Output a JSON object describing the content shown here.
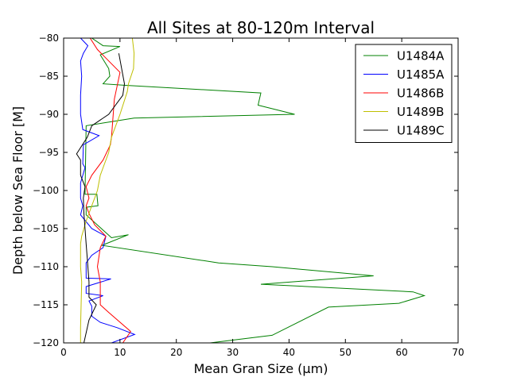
{
  "chart_data": {
    "type": "line",
    "title": "All Sites at 80-120m Interval",
    "xlabel": "Mean Gran Size (μm)",
    "ylabel": "Depth below Sea Floor [M]",
    "xlim": [
      0,
      70
    ],
    "ylim": [
      -120,
      -80
    ],
    "xticks": [
      0,
      10,
      20,
      30,
      40,
      50,
      60,
      70
    ],
    "yticks": [
      -80,
      -85,
      -90,
      -95,
      -100,
      -105,
      -110,
      -115,
      -120
    ],
    "grid": false,
    "legend_position": "top-right",
    "series": [
      {
        "name": "U1484A",
        "color": "#008000",
        "points": [
          [
            5.0,
            -80
          ],
          [
            7.0,
            -81
          ],
          [
            10.0,
            -81.1
          ],
          [
            6.5,
            -82.2
          ],
          [
            8.0,
            -84
          ],
          [
            8.2,
            -85
          ],
          [
            7.0,
            -86
          ],
          [
            11.0,
            -86.2
          ],
          [
            35.0,
            -87.2
          ],
          [
            34.5,
            -88.8
          ],
          [
            41.0,
            -90
          ],
          [
            12.5,
            -90.5
          ],
          [
            4.0,
            -91.5
          ],
          [
            3.8,
            -100.5
          ],
          [
            5.9,
            -100.5
          ],
          [
            6.1,
            -102
          ],
          [
            4.0,
            -102.2
          ],
          [
            4.0,
            -103.2
          ],
          [
            8.5,
            -106.2
          ],
          [
            11.5,
            -105.8
          ],
          [
            6.8,
            -107.2
          ],
          [
            27.5,
            -109.5
          ],
          [
            37.0,
            -110
          ],
          [
            55.0,
            -111.2
          ],
          [
            35.0,
            -112.3
          ],
          [
            62.0,
            -113.3
          ],
          [
            64.0,
            -113.8
          ],
          [
            59.5,
            -114.8
          ],
          [
            47.0,
            -115.3
          ],
          [
            37.0,
            -119
          ],
          [
            26.0,
            -120
          ]
        ]
      },
      {
        "name": "U1485A",
        "color": "#0000ff",
        "points": [
          [
            3.0,
            -80
          ],
          [
            4.3,
            -81
          ],
          [
            3.5,
            -82
          ],
          [
            3.0,
            -83
          ],
          [
            3.2,
            -85
          ],
          [
            3.0,
            -87.5
          ],
          [
            3.0,
            -90
          ],
          [
            3.4,
            -92
          ],
          [
            6.3,
            -92.8
          ],
          [
            3.5,
            -94
          ],
          [
            3.4,
            -96.5
          ],
          [
            3.8,
            -97
          ],
          [
            3.0,
            -99
          ],
          [
            3.0,
            -101
          ],
          [
            3.4,
            -102
          ],
          [
            3.0,
            -103.2
          ],
          [
            5.0,
            -105
          ],
          [
            7.5,
            -106
          ],
          [
            7.0,
            -107.5
          ],
          [
            5.0,
            -108.5
          ],
          [
            4.0,
            -109.5
          ],
          [
            4.0,
            -110.5
          ],
          [
            4.0,
            -111.5
          ],
          [
            8.4,
            -111.6
          ],
          [
            4.0,
            -112.6
          ],
          [
            4.0,
            -113.5
          ],
          [
            7.0,
            -113.8
          ],
          [
            4.5,
            -114.5
          ],
          [
            5.0,
            -115.2
          ],
          [
            5.0,
            -116.5
          ],
          [
            6.5,
            -117.3
          ],
          [
            9.5,
            -118
          ],
          [
            12.6,
            -118.9
          ],
          [
            8.5,
            -120
          ]
        ]
      },
      {
        "name": "U1486B",
        "color": "#ff0000",
        "points": [
          [
            4.7,
            -80
          ],
          [
            6.0,
            -81.5
          ],
          [
            8.0,
            -83
          ],
          [
            10.0,
            -84.5
          ],
          [
            9.0,
            -88
          ],
          [
            8.5,
            -93
          ],
          [
            8.3,
            -94
          ],
          [
            7.0,
            -96
          ],
          [
            5.0,
            -98
          ],
          [
            4.0,
            -99.5
          ],
          [
            4.5,
            -101
          ],
          [
            4.0,
            -102
          ],
          [
            4.5,
            -103
          ],
          [
            5.5,
            -104.5
          ],
          [
            7.5,
            -106
          ],
          [
            6.5,
            -107.5
          ],
          [
            6.0,
            -110
          ],
          [
            6.5,
            -112
          ],
          [
            6.5,
            -115
          ],
          [
            8.0,
            -116
          ],
          [
            11.9,
            -118.5
          ],
          [
            10.5,
            -120
          ]
        ]
      },
      {
        "name": "U1489B",
        "color": "#bfbf00",
        "points": [
          [
            12.2,
            -80
          ],
          [
            12.5,
            -82
          ],
          [
            12.4,
            -84
          ],
          [
            11.5,
            -86
          ],
          [
            11.3,
            -87
          ],
          [
            10.0,
            -90
          ],
          [
            8.5,
            -93
          ],
          [
            8.0,
            -95
          ],
          [
            6.5,
            -98
          ],
          [
            6.0,
            -100
          ],
          [
            5.5,
            -101
          ],
          [
            5.0,
            -102
          ],
          [
            4.0,
            -104
          ],
          [
            3.2,
            -106
          ],
          [
            3.0,
            -107
          ],
          [
            3.0,
            -110
          ],
          [
            3.2,
            -112
          ],
          [
            3.1,
            -115
          ],
          [
            3.0,
            -118
          ],
          [
            3.0,
            -120
          ]
        ]
      },
      {
        "name": "U1489C",
        "color": "#000000",
        "points": [
          [
            9.8,
            -82
          ],
          [
            10.8,
            -86
          ],
          [
            10.5,
            -87.5
          ],
          [
            8.0,
            -90
          ],
          [
            5.0,
            -91.5
          ],
          [
            4.2,
            -93
          ],
          [
            2.3,
            -95.2
          ],
          [
            3.0,
            -96
          ],
          [
            3.0,
            -98
          ],
          [
            3.8,
            -99.5
          ],
          [
            3.5,
            -101
          ],
          [
            3.6,
            -103
          ],
          [
            3.8,
            -105
          ],
          [
            4.0,
            -107
          ],
          [
            4.2,
            -109
          ],
          [
            4.5,
            -112
          ],
          [
            4.5,
            -114
          ],
          [
            5.8,
            -115
          ],
          [
            4.5,
            -117
          ],
          [
            3.6,
            -120
          ]
        ]
      }
    ]
  }
}
